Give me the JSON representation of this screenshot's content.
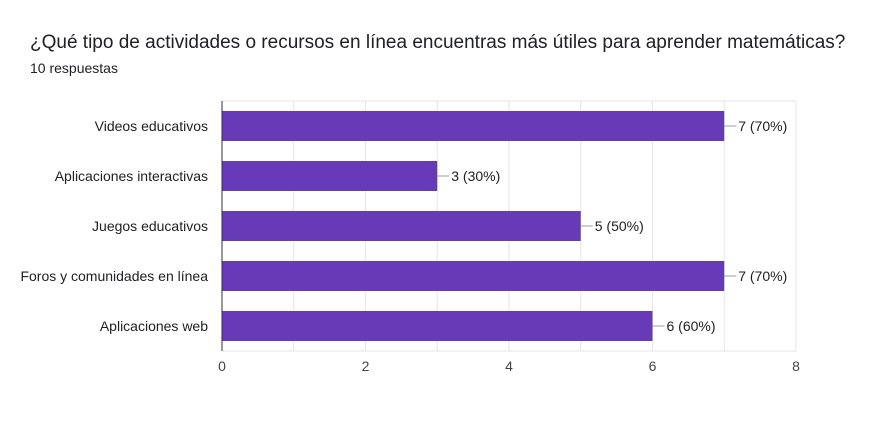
{
  "title": "¿Qué tipo de actividades o recursos en línea encuentras más útiles para aprender matemáticas?",
  "subtitle": "10 respuestas",
  "chart_data": {
    "type": "bar",
    "orientation": "horizontal",
    "categories": [
      "Videos educativos",
      "Aplicaciones interactivas",
      "Juegos educativos",
      "Foros y comunidades en línea",
      "Aplicaciones web"
    ],
    "values": [
      7,
      3,
      5,
      7,
      6
    ],
    "data_labels": [
      "7 (70%)",
      "3 (30%)",
      "5 (50%)",
      "7 (70%)",
      "6 (60%)"
    ],
    "xlim": [
      0,
      8
    ],
    "xticks": [
      0,
      2,
      4,
      6,
      8
    ],
    "grid": true,
    "bar_color": "#673ab7"
  }
}
